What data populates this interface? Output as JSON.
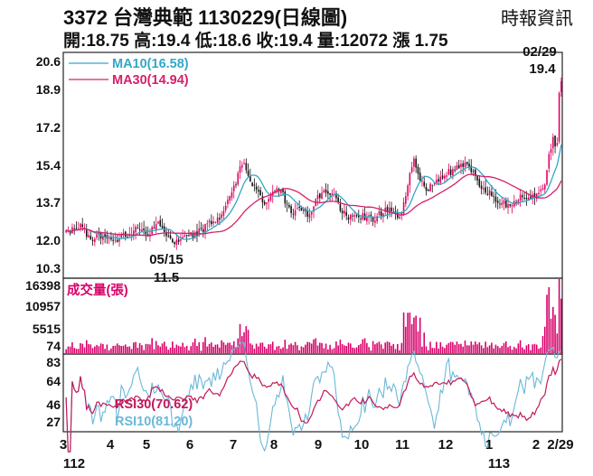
{
  "header": {
    "title": "3372  台灣典範 1130229(日線圖)",
    "source": "時報資訊",
    "quote": "開:18.75 高:19.4 低:18.6 收:19.4 量:12072 漲 1.75"
  },
  "colors": {
    "up": "#e0005f",
    "down": "#111111",
    "ma10": "#33a7c9",
    "ma30": "#d5206a",
    "volume": "#d8006a",
    "rsi30": "#c2185b",
    "rsi10": "#6bb8d8",
    "frame": "#222222"
  },
  "chart_data": [
    {
      "type": "candlestick",
      "panel": "price",
      "ylim": [
        10.3,
        20.6
      ],
      "yticks": [
        "20.6",
        "18.9",
        "17.2",
        "15.4",
        "13.7",
        "12.0",
        "10.3"
      ],
      "ytick_values": [
        20.6,
        18.9,
        17.2,
        15.4,
        13.7,
        12.0,
        10.3
      ],
      "x_months": [
        "3",
        "4",
        "5",
        "6",
        "7",
        "8",
        "9",
        "10",
        "11",
        "12",
        "1",
        "2",
        "2/29"
      ],
      "x_years": [
        "112",
        "113"
      ],
      "series": [
        {
          "name": "MA10(16.58)",
          "indicator": "MA10",
          "last": 16.58
        },
        {
          "name": "MA30(14.94)",
          "indicator": "MA30",
          "last": 14.94
        }
      ],
      "annotations": [
        {
          "label": "05/15",
          "value": "11.5",
          "kind": "low",
          "price": 11.5
        },
        {
          "label": "02/29",
          "value": "19.4",
          "kind": "high",
          "price": 19.4
        }
      ],
      "close_anchors": [
        [
          0,
          12.4
        ],
        [
          8,
          12.6
        ],
        [
          12,
          12.0
        ],
        [
          18,
          12.2
        ],
        [
          24,
          12.0
        ],
        [
          30,
          12.3
        ],
        [
          35,
          12.6
        ],
        [
          40,
          12.3
        ],
        [
          44,
          12.8
        ],
        [
          48,
          12.4
        ],
        [
          53,
          11.8
        ],
        [
          58,
          12.1
        ],
        [
          64,
          12.3
        ],
        [
          70,
          12.7
        ],
        [
          75,
          13.0
        ],
        [
          80,
          13.9
        ],
        [
          83,
          14.6
        ],
        [
          86,
          15.5
        ],
        [
          89,
          15.0
        ],
        [
          93,
          14.2
        ],
        [
          97,
          13.6
        ],
        [
          102,
          14.4
        ],
        [
          106,
          14.0
        ],
        [
          110,
          13.2
        ],
        [
          114,
          13.6
        ],
        [
          118,
          13.0
        ],
        [
          122,
          13.8
        ],
        [
          127,
          14.2
        ],
        [
          131,
          14.0
        ],
        [
          135,
          13.2
        ],
        [
          140,
          13.0
        ],
        [
          145,
          13.1
        ],
        [
          150,
          12.9
        ],
        [
          154,
          13.2
        ],
        [
          158,
          13.4
        ],
        [
          161,
          13.0
        ],
        [
          164,
          13.2
        ],
        [
          167,
          14.6
        ],
        [
          170,
          15.6
        ],
        [
          173,
          14.8
        ],
        [
          176,
          14.2
        ],
        [
          180,
          14.6
        ],
        [
          185,
          15.0
        ],
        [
          190,
          15.2
        ],
        [
          195,
          15.4
        ],
        [
          199,
          15.0
        ],
        [
          203,
          14.4
        ],
        [
          207,
          14.1
        ],
        [
          211,
          13.8
        ],
        [
          215,
          13.6
        ],
        [
          219,
          13.8
        ],
        [
          223,
          14.0
        ],
        [
          227,
          14.0
        ],
        [
          231,
          14.0
        ],
        [
          234,
          14.6
        ],
        [
          236,
          16.0
        ],
        [
          238,
          16.6
        ],
        [
          240,
          16.3
        ],
        [
          241,
          18.75
        ],
        [
          242,
          19.4
        ]
      ]
    },
    {
      "type": "bar",
      "panel": "volume",
      "name": "成交量(張)",
      "ylim": [
        0,
        16398
      ],
      "yticks": [
        "16398",
        "10957",
        "5515",
        "74"
      ],
      "ytick_values": [
        16398,
        10957,
        5515,
        74
      ],
      "last": 12072
    },
    {
      "type": "line",
      "panel": "rsi",
      "ylim": [
        20,
        88
      ],
      "yticks": [
        "83",
        "64",
        "46",
        "27"
      ],
      "ytick_values": [
        83,
        64,
        46,
        27
      ],
      "series": [
        {
          "name": "RSI30(70.62)",
          "indicator": "RSI30",
          "last": 70.62
        },
        {
          "name": "RSI10(81.20)",
          "indicator": "RSI10",
          "last": 81.2
        }
      ]
    }
  ]
}
